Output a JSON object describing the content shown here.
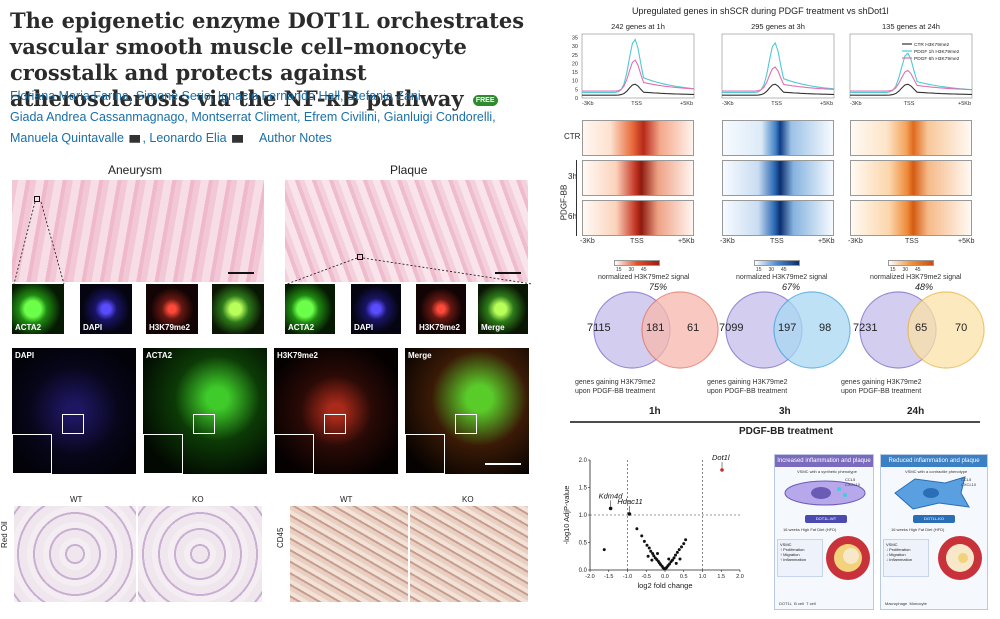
{
  "article": {
    "title": "The epigenetic enzyme DOT1L orchestrates vascular smooth muscle cell–monocyte crosstalk and protects against atherosclerosis via the NF-κB pathway",
    "badge": "FREE",
    "authors_line1": "Floriana Maria Farina, Simone Serio, Ignacio Fernando Hall, Stefania Zani,",
    "authors_line2": "Giada Andrea Cassanmagnago, Montserrat Climent, Efrem Civilini, Gianluigi Condorelli,",
    "authors_line3a": "Manuela Quintavalle",
    "authors_line3b": "Leonardo Elia",
    "author_notes": "Author Notes"
  },
  "histology": {
    "aneurysm": "Aneurysm",
    "plaque": "Plaque",
    "insets_left": [
      "ACTA2",
      "DAPI",
      "H3K79me2"
    ],
    "insets_right": [
      "ACTA2",
      "DAPI",
      "H3K79me2",
      "Merge"
    ],
    "fluor_fields": [
      "DAPI",
      "ACTA2",
      "H3K79me2",
      "Merge"
    ],
    "oil_wt": "WT",
    "oil_ko": "KO",
    "oil_side": "Red Oil",
    "cd_wt": "WT",
    "cd_ko": "KO",
    "cd_side": "CD45"
  },
  "chipseq": {
    "title": "Upregulated genes in shSCR during PDGF treatment vs shDot1l",
    "panels": [
      "242 genes at 1h",
      "295 genes at 3h",
      "135 genes at 24h"
    ],
    "y_ticks": [
      "35",
      "30",
      "25",
      "20",
      "15",
      "10",
      "5",
      "0"
    ],
    "x_left": "-3Kb",
    "x_mid": "TSS",
    "x_right": "+5Kb",
    "legend": [
      "CTR H3K79me2",
      "PDGF 1h H3K79me2",
      "PDGF 6h H3K79me2"
    ],
    "row_labels": [
      "CTR",
      "3h",
      "6h"
    ],
    "group_label": "PDGF-BB",
    "cbar_label": "normalized H3K79me2 signal",
    "cbar_ticks": [
      "15",
      "30",
      "45"
    ]
  },
  "venn": {
    "items": [
      {
        "pct": "75%",
        "left": "7115",
        "mid": "181",
        "right": "61",
        "time": "1h"
      },
      {
        "pct": "67%",
        "left": "7099",
        "mid": "197",
        "right": "98",
        "time": "3h"
      },
      {
        "pct": "48%",
        "left": "7231",
        "mid": "65",
        "right": "70",
        "time": "24h"
      }
    ],
    "caption_line1": "genes gaining H3K79me2",
    "caption_line2": "upon PDGF-BB treatment",
    "treatment": "PDGF-BB treatment"
  },
  "chart_data": {
    "type": "scatter",
    "xlabel": "log2 fold change",
    "ylabel": "-log10 AdjP-value",
    "xlim": [
      -2.0,
      2.0
    ],
    "ylim": [
      0,
      2.0
    ],
    "x_ticks": [
      "-2.0",
      "-1.5",
      "-1.0",
      "-0.5",
      "0.0",
      "0.5",
      "1.0",
      "1.5",
      "2.0"
    ],
    "y_ticks": [
      "0.0",
      "0.5",
      "1.0",
      "1.5",
      "2.0"
    ],
    "labeled_points": [
      {
        "label": "Kdm4d",
        "x": -1.45,
        "y": 1.12
      },
      {
        "label": "Hdac11",
        "x": -0.95,
        "y": 1.02
      },
      {
        "label": "Dot1l",
        "x": 1.52,
        "y": 1.82
      }
    ],
    "points": [
      {
        "x": -1.62,
        "y": 0.37
      },
      {
        "x": -0.75,
        "y": 0.75
      },
      {
        "x": -0.62,
        "y": 0.62
      },
      {
        "x": -0.55,
        "y": 0.52
      },
      {
        "x": -0.48,
        "y": 0.45
      },
      {
        "x": -0.42,
        "y": 0.4
      },
      {
        "x": -0.38,
        "y": 0.34
      },
      {
        "x": -0.33,
        "y": 0.3
      },
      {
        "x": -0.3,
        "y": 0.26
      },
      {
        "x": -0.26,
        "y": 0.22
      },
      {
        "x": -0.22,
        "y": 0.19
      },
      {
        "x": -0.18,
        "y": 0.16
      },
      {
        "x": -0.15,
        "y": 0.13
      },
      {
        "x": -0.12,
        "y": 0.1
      },
      {
        "x": -0.08,
        "y": 0.07
      },
      {
        "x": -0.05,
        "y": 0.04
      },
      {
        "x": -0.02,
        "y": 0.02
      },
      {
        "x": 0.02,
        "y": 0.03
      },
      {
        "x": 0.05,
        "y": 0.05
      },
      {
        "x": 0.08,
        "y": 0.08
      },
      {
        "x": 0.12,
        "y": 0.11
      },
      {
        "x": 0.16,
        "y": 0.15
      },
      {
        "x": 0.2,
        "y": 0.18
      },
      {
        "x": 0.24,
        "y": 0.22
      },
      {
        "x": 0.28,
        "y": 0.27
      },
      {
        "x": 0.33,
        "y": 0.32
      },
      {
        "x": 0.38,
        "y": 0.37
      },
      {
        "x": 0.44,
        "y": 0.42
      },
      {
        "x": 0.5,
        "y": 0.48
      },
      {
        "x": 0.55,
        "y": 0.55
      },
      {
        "x": -0.35,
        "y": 0.18
      },
      {
        "x": -0.2,
        "y": 0.3
      },
      {
        "x": 0.1,
        "y": 0.2
      },
      {
        "x": 0.3,
        "y": 0.12
      },
      {
        "x": -0.45,
        "y": 0.25
      },
      {
        "x": 0.4,
        "y": 0.2
      }
    ]
  },
  "schematic": {
    "left_header": "Increased inflammation and plaque progression",
    "right_header": "Reduced inflammation and plaque progression",
    "left_cell": "VSMC with a synthetic phenotype",
    "right_cell": "VSMC with a contractile phenotype",
    "left_cyto": "CCL5\nCXCL10",
    "right_cyto": "CCL5\nCXCL10",
    "left_mouse": "DOT1L-WT",
    "right_mouse": "DOT1L-KO",
    "left_diet": "16 weeks High Fat Diet (HFD)",
    "right_diet": "16 weeks High Fat Diet (HFD)",
    "vsmc": "VSMC",
    "bullets": [
      "Proliferation",
      "Migration",
      "Inflammation"
    ],
    "legend": [
      "DOT1L",
      "B cell",
      "T cell",
      "Macrophage",
      "Monocyte"
    ],
    "colors": {
      "left": "#7b6bbf",
      "right": "#3b7fc4",
      "cell_left": "#9a8ad6",
      "cell_right": "#5aa0e0"
    }
  }
}
